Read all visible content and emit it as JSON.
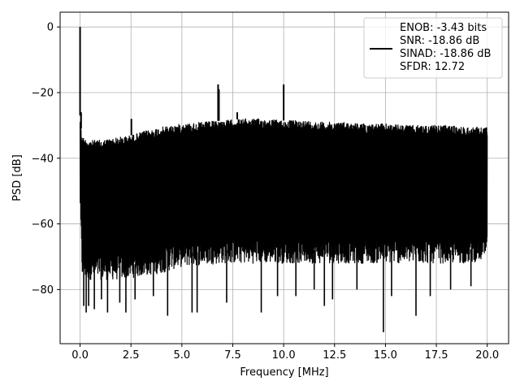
{
  "chart_data": {
    "type": "line",
    "title": "",
    "xlabel": "Frequency [MHz]",
    "ylabel": "PSD [dB]",
    "xlim": [
      -0.98,
      21.05
    ],
    "ylim": [
      -96.5,
      4.5
    ],
    "x_ticks": [
      0.0,
      2.5,
      5.0,
      7.5,
      10.0,
      12.5,
      15.0,
      17.5,
      20.0
    ],
    "x_tick_labels": [
      "0.0",
      "2.5",
      "5.0",
      "7.5",
      "10.0",
      "12.5",
      "15.0",
      "17.5",
      "20.0"
    ],
    "y_ticks": [
      0,
      -20,
      -40,
      -60,
      -80
    ],
    "y_tick_labels": [
      "0",
      "−20",
      "−40",
      "−60",
      "−80"
    ],
    "grid": true,
    "legend_position": "top-right",
    "legend": [
      "ENOB: -3.43 bits",
      "SNR: -18.86 dB",
      "SINAD: -18.86 dB",
      "SFDR: 12.72"
    ],
    "series": [
      {
        "color": "#000000",
        "upper_envelope": {
          "x": [
            0.0,
            0.02,
            0.05,
            0.1,
            0.2,
            0.5,
            1.0,
            1.5,
            2.0,
            2.5,
            3.0,
            4.0,
            5.0,
            6.0,
            7.0,
            8.0,
            9.0,
            10.0,
            11.0,
            12.0,
            13.0,
            14.0,
            15.0,
            16.0,
            17.0,
            18.0,
            19.0,
            20.0
          ],
          "y": [
            -27,
            -27,
            -31,
            -33,
            -34,
            -34.5,
            -34.5,
            -34,
            -33.5,
            -33,
            -32,
            -30.5,
            -29.5,
            -29,
            -28.5,
            -28,
            -28,
            -28.5,
            -28.5,
            -29,
            -29,
            -29.5,
            -29.5,
            -30,
            -30,
            -30,
            -30.5,
            -30.5
          ]
        },
        "lower_envelope": {
          "x": [
            0.0,
            0.05,
            0.1,
            0.3,
            1.0,
            2.0,
            3.0,
            4.0,
            5.0,
            7.0,
            9.0,
            11.0,
            13.0,
            15.0,
            17.0,
            19.0,
            20.0
          ],
          "y": [
            -50,
            -62,
            -72,
            -73,
            -73,
            -73,
            -72,
            -71,
            -69,
            -68,
            -68,
            -68,
            -68,
            -68,
            -68,
            -68,
            -67
          ]
        },
        "peaks": [
          {
            "x": 0.0,
            "y": 0
          },
          {
            "x": 0.05,
            "y": -26
          },
          {
            "x": 2.52,
            "y": -28
          },
          {
            "x": 6.78,
            "y": -17.5
          },
          {
            "x": 6.82,
            "y": -19
          },
          {
            "x": 7.72,
            "y": -26
          },
          {
            "x": 10.0,
            "y": -17.5
          }
        ],
        "dips": [
          {
            "x": 0.18,
            "y": -85
          },
          {
            "x": 0.3,
            "y": -87
          },
          {
            "x": 0.42,
            "y": -85
          },
          {
            "x": 0.7,
            "y": -86
          },
          {
            "x": 1.05,
            "y": -83
          },
          {
            "x": 1.35,
            "y": -87
          },
          {
            "x": 1.95,
            "y": -84
          },
          {
            "x": 2.25,
            "y": -87
          },
          {
            "x": 2.7,
            "y": -83
          },
          {
            "x": 3.6,
            "y": -82
          },
          {
            "x": 4.3,
            "y": -88
          },
          {
            "x": 5.5,
            "y": -87
          },
          {
            "x": 5.75,
            "y": -87
          },
          {
            "x": 7.2,
            "y": -84
          },
          {
            "x": 8.9,
            "y": -87
          },
          {
            "x": 9.7,
            "y": -82
          },
          {
            "x": 10.6,
            "y": -82
          },
          {
            "x": 11.5,
            "y": -80
          },
          {
            "x": 12.0,
            "y": -85
          },
          {
            "x": 12.4,
            "y": -83
          },
          {
            "x": 13.6,
            "y": -80
          },
          {
            "x": 14.9,
            "y": -93
          },
          {
            "x": 15.3,
            "y": -82
          },
          {
            "x": 16.5,
            "y": -88
          },
          {
            "x": 17.2,
            "y": -82
          },
          {
            "x": 18.2,
            "y": -80
          },
          {
            "x": 19.2,
            "y": -79
          }
        ]
      }
    ]
  }
}
